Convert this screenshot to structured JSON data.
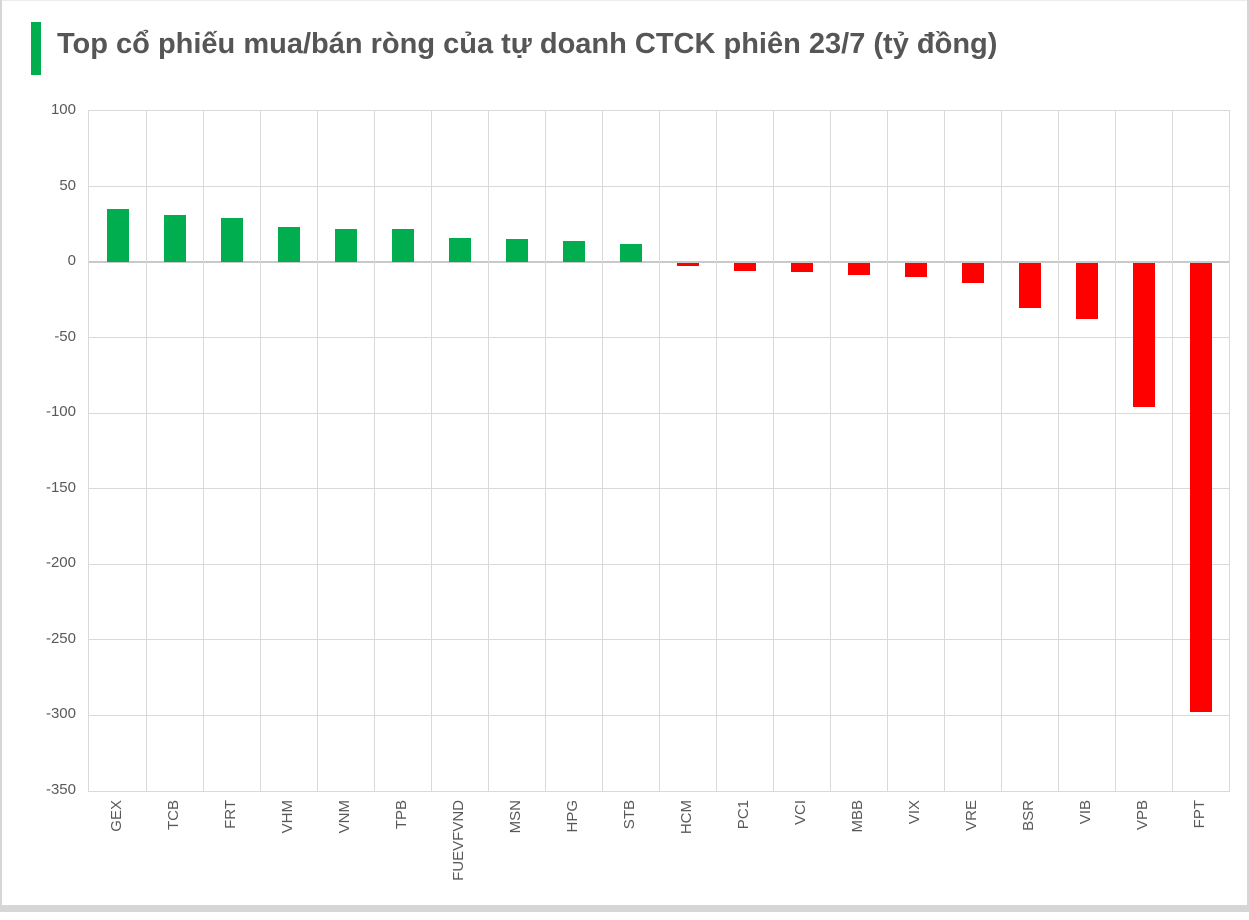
{
  "window": {
    "background": "#ffffff",
    "edge_color": "#d6d6d6"
  },
  "header": {
    "title": "Top cổ phiếu mua/bán ròng của tự doanh CTCK phiên 23/7 (tỷ đồng)",
    "accent_color": "#00AE50"
  },
  "chart_data": {
    "type": "bar",
    "title": "Top cổ phiếu mua/bán ròng của tự doanh CTCK phiên 23/7 (tỷ đồng)",
    "unit": "tỷ đồng",
    "categories": [
      "GEX",
      "TCB",
      "FRT",
      "VHM",
      "VNM",
      "TPB",
      "FUEVFVND",
      "MSN",
      "HPG",
      "STB",
      "HCM",
      "PC1",
      "VCI",
      "MBB",
      "VIX",
      "VRE",
      "BSR",
      "VIB",
      "VPB",
      "FPT"
    ],
    "values": [
      35,
      31,
      29,
      23,
      22,
      22,
      16,
      15,
      14,
      12,
      -2,
      -5,
      -6,
      -8,
      -9,
      -13,
      -30,
      -37,
      -95,
      -297
    ],
    "xlabel": "",
    "ylabel": "",
    "ylim": [
      -350,
      100
    ],
    "yticks": [
      100,
      50,
      0,
      -50,
      -100,
      -150,
      -200,
      -250,
      -300,
      -350
    ],
    "grid": true,
    "legend_position": "none",
    "positive_color": "#00AE50",
    "negative_color": "#FF0000",
    "gridline_color": "#D9D9D9",
    "zero_line_color": "#C9C9C9",
    "axis_label_color": "#595959",
    "title_color": "#565656"
  }
}
